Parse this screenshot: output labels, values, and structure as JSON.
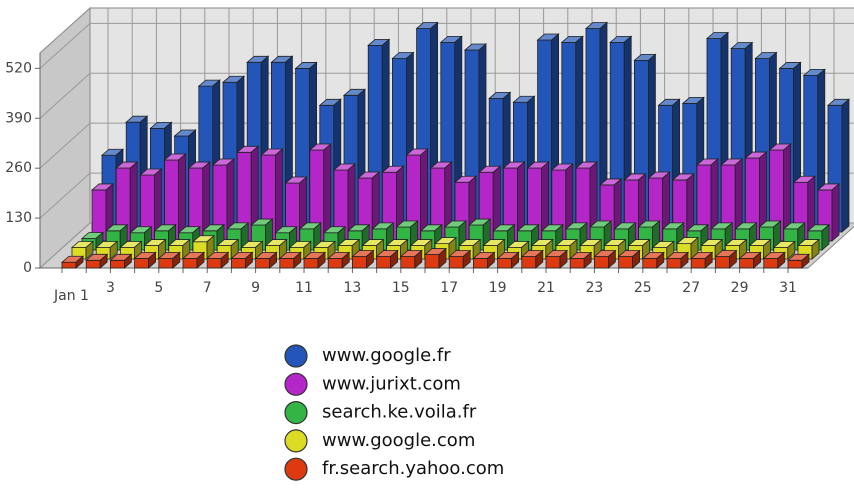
{
  "chart_data": {
    "type": "bar3d",
    "categories": [
      "Jan 1",
      null,
      "3",
      null,
      "5",
      null,
      "7",
      null,
      "9",
      null,
      "11",
      null,
      "13",
      null,
      "15",
      null,
      "17",
      null,
      "19",
      null,
      "21",
      null,
      "23",
      null,
      "25",
      null,
      "27",
      null,
      "29",
      null,
      "31"
    ],
    "series": [
      {
        "name": "www.google.fr",
        "color": "#2356b8",
        "values": [
          200,
          286,
          270,
          250,
          380,
          390,
          442,
          442,
          426,
          330,
          356,
          486,
          452,
          530,
          494,
          474,
          348,
          338,
          500,
          494,
          530,
          494,
          447,
          330,
          335,
          504,
          478,
          452,
          426,
          408,
          330
        ]
      },
      {
        "name": "www.jurixt.com",
        "color": "#b526c9",
        "values": [
          133,
          190,
          172,
          211,
          190,
          198,
          231,
          224,
          151,
          237,
          185,
          164,
          179,
          224,
          190,
          153,
          179,
          190,
          190,
          185,
          190,
          146,
          159,
          164,
          159,
          198,
          198,
          216,
          237,
          153,
          133
        ]
      },
      {
        "name": "search.ke.voila.fr",
        "color": "#33b545",
        "values": [
          30,
          50,
          45,
          50,
          45,
          50,
          55,
          65,
          45,
          55,
          45,
          50,
          55,
          60,
          50,
          60,
          65,
          50,
          50,
          50,
          55,
          60,
          55,
          60,
          55,
          50,
          55,
          55,
          60,
          55,
          50
        ]
      },
      {
        "name": "www.google.com",
        "color": "#dcdc25",
        "values": [
          30,
          30,
          30,
          35,
          35,
          45,
          35,
          30,
          35,
          30,
          30,
          35,
          35,
          35,
          35,
          40,
          35,
          35,
          30,
          35,
          35,
          35,
          35,
          35,
          30,
          40,
          35,
          35,
          35,
          30,
          35
        ]
      },
      {
        "name": "fr.search.yahoo.com",
        "color": "#dd3a12",
        "values": [
          15,
          20,
          20,
          25,
          25,
          25,
          25,
          25,
          25,
          25,
          25,
          25,
          30,
          30,
          30,
          35,
          30,
          25,
          25,
          30,
          30,
          25,
          30,
          30,
          25,
          25,
          25,
          30,
          25,
          25,
          20
        ]
      }
    ],
    "ylim": [
      0,
      560
    ],
    "yticks": [
      0,
      130,
      260,
      390,
      520
    ],
    "grid": true
  }
}
